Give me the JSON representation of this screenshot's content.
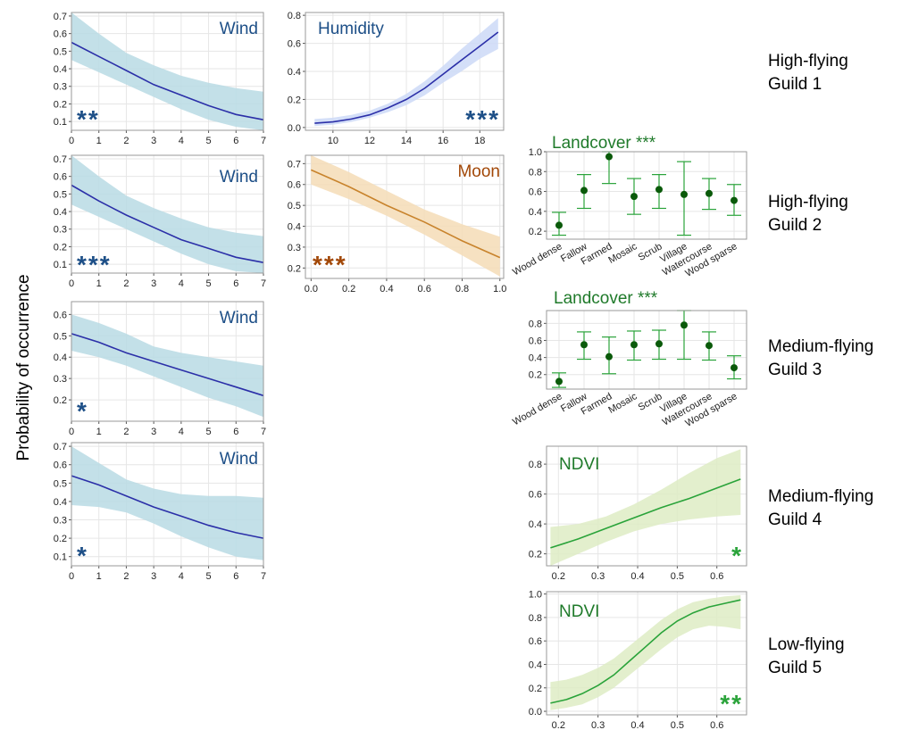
{
  "y_axis_label": "Probability of occurrence",
  "colors": {
    "blue_line": "#2b2fa8",
    "blue_band": "#b9dbe4",
    "blue_band_alt": "#cdd9f7",
    "blue_text": "#1d4f87",
    "orange_line": "#c8832c",
    "orange_band": "#f5dcb6",
    "orange_text": "#a24808",
    "green_line": "#2aa33a",
    "green_band": "#deecc4",
    "green_dark": "#1f7a2a",
    "green_points": "#0a5a0a",
    "grid": "#e6e6e6",
    "frame": "#9a9a9a"
  },
  "guild_labels": [
    {
      "line1": "High-flying",
      "line2": "Guild 1"
    },
    {
      "line1": "High-flying",
      "line2": "Guild 2"
    },
    {
      "line1": "Medium-flying",
      "line2": "Guild 3"
    },
    {
      "line1": "Medium-flying",
      "line2": "Guild 4"
    },
    {
      "line1": "Low-flying",
      "line2": "Guild 5"
    }
  ],
  "chart_data": [
    {
      "id": "g1-wind",
      "type": "line",
      "title": "Wind",
      "significance": "**",
      "theme": "blue",
      "xlim": [
        0,
        7
      ],
      "ylim": [
        0.05,
        0.72
      ],
      "xticks": [
        "0",
        "1",
        "2",
        "3",
        "4",
        "5",
        "6",
        "7"
      ],
      "xtick_values": [
        0,
        1,
        2,
        3,
        4,
        5,
        6,
        7
      ],
      "yticks": [
        "0.1",
        "0.2",
        "0.3",
        "0.4",
        "0.5",
        "0.6",
        "0.7"
      ],
      "ytick_values": [
        0.1,
        0.2,
        0.3,
        0.4,
        0.5,
        0.6,
        0.7
      ],
      "x": [
        0,
        1,
        2,
        3,
        4,
        5,
        6,
        7
      ],
      "y": [
        0.55,
        0.47,
        0.39,
        0.31,
        0.25,
        0.19,
        0.14,
        0.11
      ],
      "lower": [
        0.45,
        0.38,
        0.31,
        0.24,
        0.17,
        0.11,
        0.07,
        0.05
      ],
      "upper": [
        0.72,
        0.6,
        0.49,
        0.42,
        0.36,
        0.32,
        0.29,
        0.27
      ]
    },
    {
      "id": "g1-humidity",
      "type": "line",
      "title": "Humidity",
      "significance": "***",
      "theme": "blue_alt",
      "xlim": [
        8.5,
        19.3
      ],
      "ylim": [
        -0.02,
        0.82
      ],
      "xticks": [
        "10",
        "12",
        "14",
        "16",
        "18"
      ],
      "xtick_values": [
        10,
        12,
        14,
        16,
        18
      ],
      "yticks": [
        "0.0",
        "0.2",
        "0.4",
        "0.6",
        "0.8"
      ],
      "ytick_values": [
        0,
        0.2,
        0.4,
        0.6,
        0.8
      ],
      "x": [
        9,
        10,
        11,
        12,
        13,
        14,
        15,
        16,
        17,
        18,
        19
      ],
      "y": [
        0.03,
        0.04,
        0.06,
        0.09,
        0.14,
        0.2,
        0.28,
        0.38,
        0.48,
        0.58,
        0.68
      ],
      "lower": [
        0.01,
        0.02,
        0.04,
        0.07,
        0.11,
        0.16,
        0.23,
        0.32,
        0.4,
        0.49,
        0.56
      ],
      "upper": [
        0.06,
        0.07,
        0.09,
        0.12,
        0.17,
        0.24,
        0.33,
        0.44,
        0.56,
        0.67,
        0.78
      ]
    },
    {
      "id": "g2-wind",
      "type": "line",
      "title": "Wind",
      "significance": "***",
      "theme": "blue",
      "xlim": [
        0,
        7
      ],
      "ylim": [
        0.05,
        0.72
      ],
      "xticks": [
        "0",
        "1",
        "2",
        "3",
        "4",
        "5",
        "6",
        "7"
      ],
      "xtick_values": [
        0,
        1,
        2,
        3,
        4,
        5,
        6,
        7
      ],
      "yticks": [
        "0.1",
        "0.2",
        "0.3",
        "0.4",
        "0.5",
        "0.6",
        "0.7"
      ],
      "ytick_values": [
        0.1,
        0.2,
        0.3,
        0.4,
        0.5,
        0.6,
        0.7
      ],
      "x": [
        0,
        1,
        2,
        3,
        4,
        5,
        6,
        7
      ],
      "y": [
        0.55,
        0.46,
        0.38,
        0.31,
        0.24,
        0.19,
        0.14,
        0.11
      ],
      "lower": [
        0.44,
        0.37,
        0.3,
        0.23,
        0.16,
        0.1,
        0.06,
        0.05
      ],
      "upper": [
        0.72,
        0.6,
        0.49,
        0.42,
        0.36,
        0.31,
        0.28,
        0.26
      ]
    },
    {
      "id": "g2-moon",
      "type": "line",
      "title": "Moon",
      "significance": "***",
      "theme": "orange",
      "xlim": [
        -0.03,
        1.02
      ],
      "ylim": [
        0.15,
        0.74
      ],
      "xticks": [
        "0.0",
        "0.2",
        "0.4",
        "0.6",
        "0.8",
        "1.0"
      ],
      "xtick_values": [
        0,
        0.2,
        0.4,
        0.6,
        0.8,
        1.0
      ],
      "yticks": [
        "0.2",
        "0.3",
        "0.4",
        "0.5",
        "0.6",
        "0.7"
      ],
      "ytick_values": [
        0.2,
        0.3,
        0.4,
        0.5,
        0.6,
        0.7
      ],
      "x": [
        0,
        0.2,
        0.4,
        0.6,
        0.8,
        1.0
      ],
      "y": [
        0.67,
        0.59,
        0.5,
        0.42,
        0.33,
        0.25
      ],
      "lower": [
        0.6,
        0.53,
        0.45,
        0.36,
        0.26,
        0.16
      ],
      "upper": [
        0.74,
        0.66,
        0.57,
        0.48,
        0.41,
        0.35
      ]
    },
    {
      "id": "g2-landcover",
      "type": "scatter",
      "title": "Landcover ***",
      "theme": "green_points",
      "ylim": [
        0.12,
        1.0
      ],
      "yticks": [
        "0.2",
        "0.4",
        "0.6",
        "0.8",
        "1.0"
      ],
      "ytick_values": [
        0.2,
        0.4,
        0.6,
        0.8,
        1.0
      ],
      "categories": [
        "Wood dense",
        "Fallow",
        "Farmed",
        "Mosaic",
        "Scrub",
        "Village",
        "Watercourse",
        "Wood sparse"
      ],
      "values": [
        0.26,
        0.61,
        0.95,
        0.55,
        0.62,
        0.57,
        0.58,
        0.51
      ],
      "lower": [
        0.16,
        0.43,
        0.68,
        0.37,
        0.43,
        0.16,
        0.42,
        0.36
      ],
      "upper": [
        0.39,
        0.77,
        1.0,
        0.73,
        0.77,
        0.9,
        0.73,
        0.67
      ]
    },
    {
      "id": "g3-wind",
      "type": "line",
      "title": "Wind",
      "significance": "*",
      "theme": "blue",
      "xlim": [
        0,
        7
      ],
      "ylim": [
        0.1,
        0.66
      ],
      "xticks": [
        "0",
        "1",
        "2",
        "3",
        "4",
        "5",
        "6",
        "7"
      ],
      "xtick_values": [
        0,
        1,
        2,
        3,
        4,
        5,
        6,
        7
      ],
      "yticks": [
        "0.2",
        "0.3",
        "0.4",
        "0.5",
        "0.6"
      ],
      "ytick_values": [
        0.2,
        0.3,
        0.4,
        0.5,
        0.6
      ],
      "x": [
        0,
        1,
        2,
        3,
        4,
        5,
        6,
        7
      ],
      "y": [
        0.51,
        0.47,
        0.42,
        0.38,
        0.34,
        0.3,
        0.26,
        0.22
      ],
      "lower": [
        0.43,
        0.4,
        0.36,
        0.31,
        0.26,
        0.21,
        0.17,
        0.12
      ],
      "upper": [
        0.6,
        0.56,
        0.51,
        0.45,
        0.42,
        0.4,
        0.38,
        0.36
      ]
    },
    {
      "id": "g3-landcover",
      "type": "scatter",
      "title": "Landcover ***",
      "theme": "green_points",
      "ylim": [
        0.03,
        0.95
      ],
      "yticks": [
        "0.2",
        "0.4",
        "0.6",
        "0.8"
      ],
      "ytick_values": [
        0.2,
        0.4,
        0.6,
        0.8
      ],
      "categories": [
        "Wood dense",
        "Fallow",
        "Farmed",
        "Mosaic",
        "Scrub",
        "Village",
        "Watercourse",
        "Wood sparse"
      ],
      "values": [
        0.12,
        0.55,
        0.41,
        0.55,
        0.56,
        0.78,
        0.54,
        0.28
      ],
      "lower": [
        0.05,
        0.38,
        0.21,
        0.37,
        0.38,
        0.38,
        0.37,
        0.15
      ],
      "upper": [
        0.22,
        0.7,
        0.64,
        0.71,
        0.72,
        0.95,
        0.7,
        0.42
      ]
    },
    {
      "id": "g4-wind",
      "type": "line",
      "title": "Wind",
      "significance": "*",
      "theme": "blue",
      "xlim": [
        0,
        7
      ],
      "ylim": [
        0.05,
        0.72
      ],
      "xticks": [
        "0",
        "1",
        "2",
        "3",
        "4",
        "5",
        "6",
        "7"
      ],
      "xtick_values": [
        0,
        1,
        2,
        3,
        4,
        5,
        6,
        7
      ],
      "yticks": [
        "0.1",
        "0.2",
        "0.3",
        "0.4",
        "0.5",
        "0.6",
        "0.7"
      ],
      "ytick_values": [
        0.1,
        0.2,
        0.3,
        0.4,
        0.5,
        0.6,
        0.7
      ],
      "x": [
        0,
        1,
        2,
        3,
        4,
        5,
        6,
        7
      ],
      "y": [
        0.54,
        0.49,
        0.43,
        0.37,
        0.32,
        0.27,
        0.23,
        0.2
      ],
      "lower": [
        0.38,
        0.37,
        0.34,
        0.28,
        0.21,
        0.15,
        0.1,
        0.08
      ],
      "upper": [
        0.7,
        0.61,
        0.52,
        0.47,
        0.44,
        0.43,
        0.43,
        0.42
      ]
    },
    {
      "id": "g4-ndvi",
      "type": "line",
      "title": "NDVI",
      "significance": "*",
      "theme": "green",
      "xlim": [
        0.17,
        0.675
      ],
      "ylim": [
        0.12,
        0.92
      ],
      "xticks": [
        "0.2",
        "0.3",
        "0.4",
        "0.5",
        "0.6"
      ],
      "xtick_values": [
        0.2,
        0.3,
        0.4,
        0.5,
        0.6
      ],
      "yticks": [
        "0.2",
        "0.4",
        "0.6",
        "0.8"
      ],
      "ytick_values": [
        0.2,
        0.4,
        0.6,
        0.8
      ],
      "x": [
        0.18,
        0.25,
        0.32,
        0.39,
        0.46,
        0.53,
        0.6,
        0.66
      ],
      "y": [
        0.24,
        0.3,
        0.37,
        0.44,
        0.51,
        0.57,
        0.64,
        0.7
      ],
      "lower": [
        0.12,
        0.2,
        0.28,
        0.35,
        0.4,
        0.43,
        0.45,
        0.46
      ],
      "upper": [
        0.38,
        0.4,
        0.45,
        0.53,
        0.63,
        0.74,
        0.84,
        0.9
      ]
    },
    {
      "id": "g5-ndvi",
      "type": "line",
      "title": "NDVI",
      "significance": "**",
      "theme": "green",
      "xlim": [
        0.17,
        0.675
      ],
      "ylim": [
        -0.03,
        1.02
      ],
      "xticks": [
        "0.2",
        "0.3",
        "0.4",
        "0.5",
        "0.6"
      ],
      "xtick_values": [
        0.2,
        0.3,
        0.4,
        0.5,
        0.6
      ],
      "yticks": [
        "0.0",
        "0.2",
        "0.4",
        "0.6",
        "0.8",
        "1.0"
      ],
      "ytick_values": [
        0,
        0.2,
        0.4,
        0.6,
        0.8,
        1.0
      ],
      "x": [
        0.18,
        0.22,
        0.26,
        0.3,
        0.34,
        0.38,
        0.42,
        0.46,
        0.5,
        0.54,
        0.58,
        0.62,
        0.66
      ],
      "y": [
        0.07,
        0.1,
        0.15,
        0.22,
        0.31,
        0.43,
        0.55,
        0.67,
        0.77,
        0.84,
        0.89,
        0.92,
        0.95
      ],
      "lower": [
        0.01,
        0.03,
        0.06,
        0.12,
        0.2,
        0.31,
        0.42,
        0.53,
        0.63,
        0.7,
        0.73,
        0.72,
        0.7
      ],
      "upper": [
        0.25,
        0.27,
        0.31,
        0.37,
        0.45,
        0.56,
        0.67,
        0.78,
        0.87,
        0.93,
        0.96,
        0.98,
        0.99
      ]
    }
  ]
}
